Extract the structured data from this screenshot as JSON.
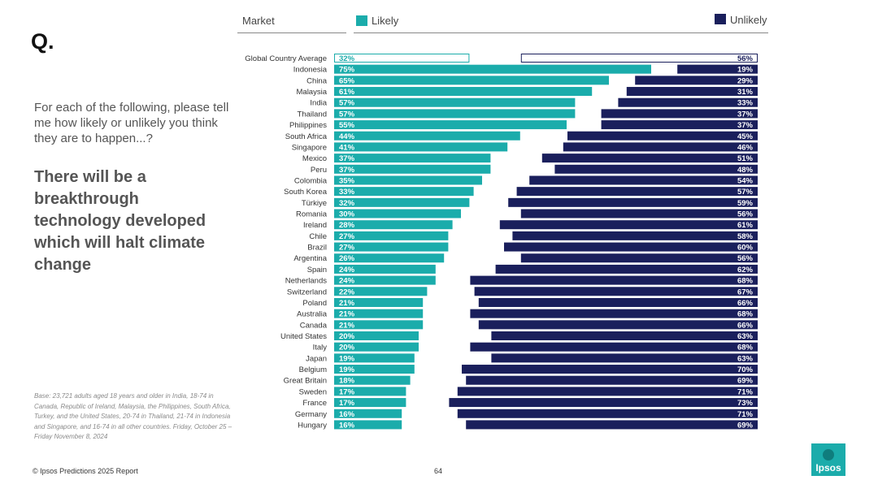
{
  "header": {
    "market_label": "Market",
    "likely_label": "Likely",
    "unlikely_label": "Unlikely"
  },
  "left_panel": {
    "q_mark": "Q.",
    "prompt": "For each of the following, please tell me how likely or unlikely you think they are to happen...?",
    "statement": "There will be a breakthrough technology developed which will halt climate change",
    "base_note": "Base: 23,721 adults aged 18 years and older in India, 18-74 in Canada, Republic of Ireland, Malaysia, the Philippines, South Africa, Turkey, and the United States, 20-74 in Thailand, 21-74 in Indonesia and Singapore, and 16-74 in all other countries. Friday, October 25 – Friday November 8, 2024"
  },
  "footer": {
    "copyright": "© Ipsos Predictions 2025 Report",
    "page_number": "64",
    "logo_text": "Ipsos"
  },
  "colors": {
    "likely": "#1bacab",
    "unlikely": "#1a1f5c",
    "average_border": "#1bacab",
    "average_unlikely_border": "#1a1f5c"
  },
  "chart_data": {
    "type": "bar",
    "orientation": "horizontal-diverging",
    "x_range": [
      0,
      100
    ],
    "categories": [
      "Global Country Average",
      "Indonesia",
      "China",
      "Malaysia",
      "India",
      "Thailand",
      "Philippines",
      "South Africa",
      "Singapore",
      "Mexico",
      "Peru",
      "Colombia",
      "South Korea",
      "Türkiye",
      "Romania",
      "Ireland",
      "Chile",
      "Brazil",
      "Argentina",
      "Spain",
      "Netherlands",
      "Switzerland",
      "Poland",
      "Australia",
      "Canada",
      "United States",
      "Italy",
      "Japan",
      "Belgium",
      "Great Britain",
      "Sweden",
      "France",
      "Germany",
      "Hungary"
    ],
    "series": [
      {
        "name": "Likely",
        "values": [
          32,
          75,
          65,
          61,
          57,
          57,
          55,
          44,
          41,
          37,
          37,
          35,
          33,
          32,
          30,
          28,
          27,
          27,
          26,
          24,
          24,
          22,
          21,
          21,
          21,
          20,
          20,
          19,
          19,
          18,
          17,
          17,
          16,
          16
        ]
      },
      {
        "name": "Unlikely",
        "values": [
          56,
          19,
          29,
          31,
          33,
          37,
          37,
          45,
          46,
          51,
          48,
          54,
          57,
          59,
          56,
          61,
          58,
          60,
          56,
          62,
          68,
          67,
          66,
          68,
          66,
          63,
          68,
          63,
          70,
          69,
          71,
          73,
          71,
          69
        ]
      }
    ]
  }
}
